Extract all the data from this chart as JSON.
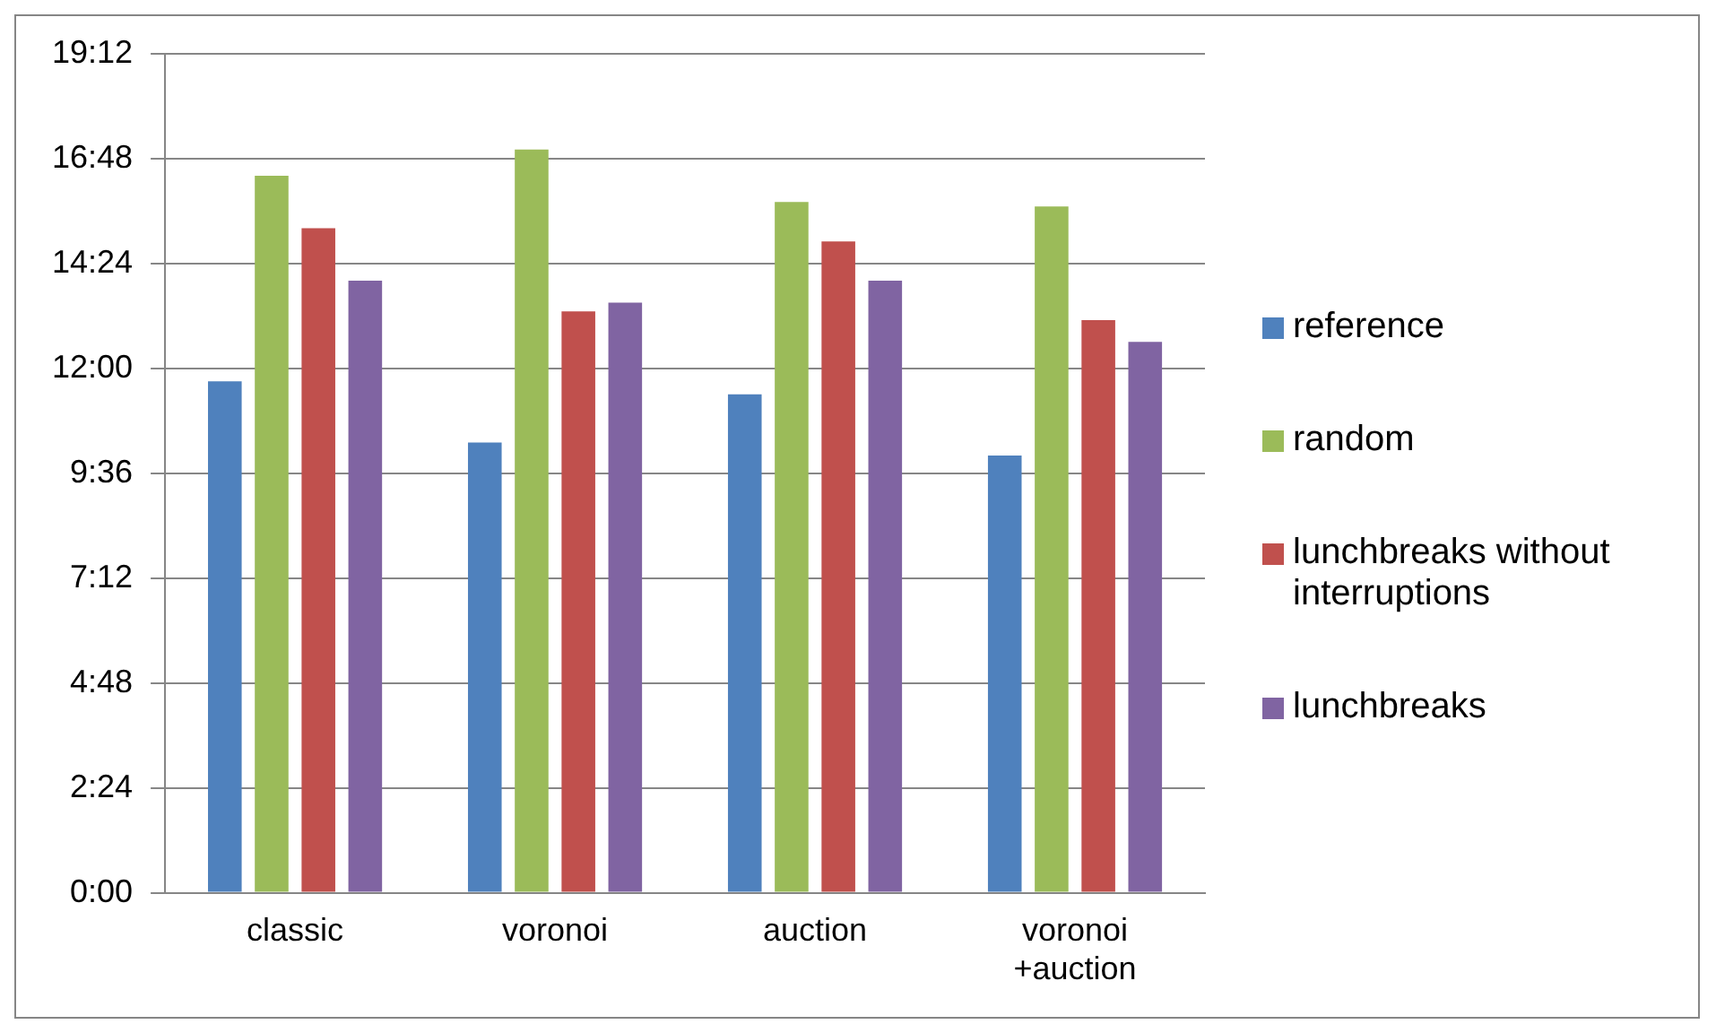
{
  "chart_data": {
    "type": "bar",
    "categories": [
      "classic",
      "voronoi",
      "auction",
      "voronoi +auction"
    ],
    "series": [
      {
        "name": "reference",
        "color": "#4f81bd",
        "values": [
          11.7,
          10.3,
          11.4,
          10.0
        ]
      },
      {
        "name": "random",
        "color": "#9bbb59",
        "values": [
          16.4,
          17.0,
          15.8,
          15.7
        ]
      },
      {
        "name": "lunchbreaks without interruptions",
        "color": "#c0504d",
        "values": [
          15.2,
          13.3,
          14.9,
          13.1
        ]
      },
      {
        "name": "lunchbreaks",
        "color": "#8064a2",
        "values": [
          14.0,
          13.5,
          14.0,
          12.6
        ]
      }
    ],
    "ylim": [
      0,
      19.2
    ],
    "yticks": [
      {
        "value": 0,
        "label": "0:00"
      },
      {
        "value": 2.4,
        "label": "2:24"
      },
      {
        "value": 4.8,
        "label": "4:48"
      },
      {
        "value": 7.2,
        "label": "7:12"
      },
      {
        "value": 9.6,
        "label": "9:36"
      },
      {
        "value": 12,
        "label": "12:00"
      },
      {
        "value": 14.4,
        "label": "14:24"
      },
      {
        "value": 16.8,
        "label": "16:48"
      },
      {
        "value": 19.2,
        "label": "19:12"
      }
    ],
    "grid": "y",
    "legend": "right"
  }
}
